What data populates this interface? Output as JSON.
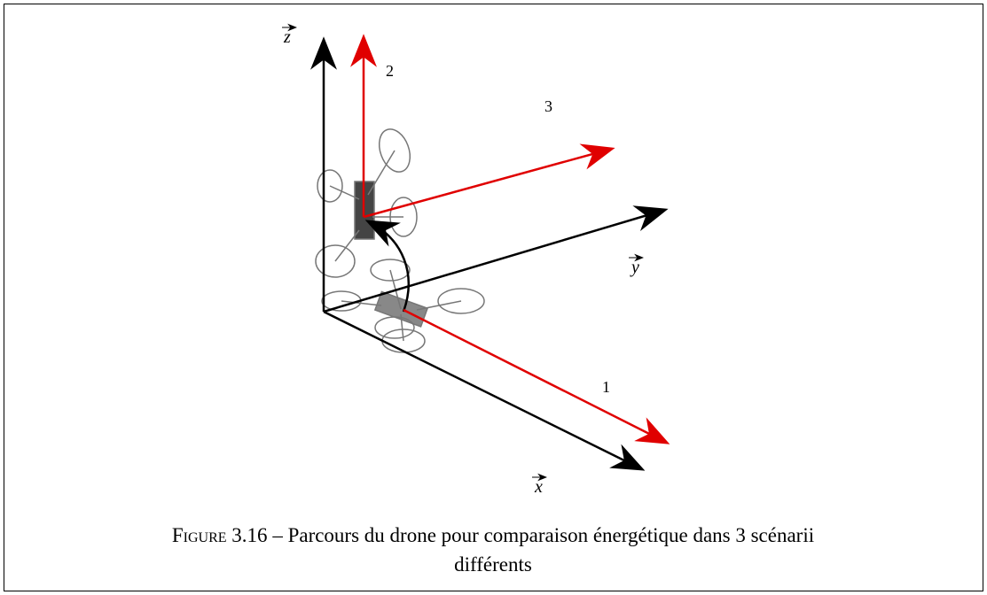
{
  "axes": {
    "z": "z",
    "y": "y",
    "x": "x"
  },
  "scenarios": [
    "1",
    "2",
    "3"
  ],
  "caption": {
    "label": "Figure 3.16",
    "line1": "– Parcours du drone pour comparaison énergétique dans 3 scénarii",
    "line2": "différents"
  }
}
